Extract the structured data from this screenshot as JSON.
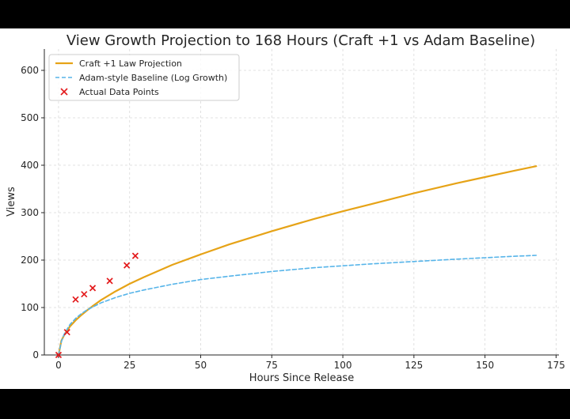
{
  "chart_data": {
    "type": "line",
    "title": "View Growth Projection to 168 Hours (Craft +1 vs Adam Baseline)",
    "xlabel": "Hours Since Release",
    "ylabel": "Views",
    "xlim": [
      -5,
      176
    ],
    "ylim": [
      0,
      645
    ],
    "xticks": [
      0,
      25,
      50,
      75,
      100,
      125,
      150,
      175
    ],
    "yticks": [
      0,
      100,
      200,
      300,
      400,
      500,
      600
    ],
    "grid": true,
    "legend_position": "top-left",
    "series": [
      {
        "name": "Craft +1 Law Projection",
        "style": "solid",
        "color": "#e6a317",
        "x": [
          0,
          1,
          2,
          4,
          6,
          8,
          10,
          12,
          15,
          20,
          25,
          30,
          40,
          50,
          60,
          75,
          90,
          100,
          110,
          125,
          140,
          150,
          160,
          168
        ],
        "y": [
          0,
          30,
          42,
          60,
          73,
          84,
          94,
          103,
          116,
          134,
          150,
          164,
          190,
          212,
          233,
          261,
          287,
          303,
          318,
          341,
          362,
          375,
          388,
          398
        ]
      },
      {
        "name": "Adam-style Baseline (Log Growth)",
        "style": "dashed",
        "color": "#56b4e9",
        "x": [
          0,
          1,
          2,
          4,
          6,
          8,
          10,
          12,
          15,
          20,
          25,
          30,
          40,
          50,
          60,
          75,
          90,
          100,
          110,
          125,
          140,
          150,
          160,
          168
        ],
        "y": [
          0,
          28,
          44,
          64,
          77,
          87,
          95,
          101,
          110,
          121,
          130,
          137,
          149,
          159,
          166,
          176,
          184,
          188,
          192,
          197,
          202,
          205,
          208,
          210
        ]
      },
      {
        "name": "Actual Data Points",
        "style": "marker-x",
        "color": "#e31a1c",
        "x": [
          0,
          3,
          6,
          9,
          12,
          18,
          24,
          27
        ],
        "y": [
          0,
          48,
          117,
          128,
          141,
          156,
          189,
          209
        ]
      }
    ]
  }
}
